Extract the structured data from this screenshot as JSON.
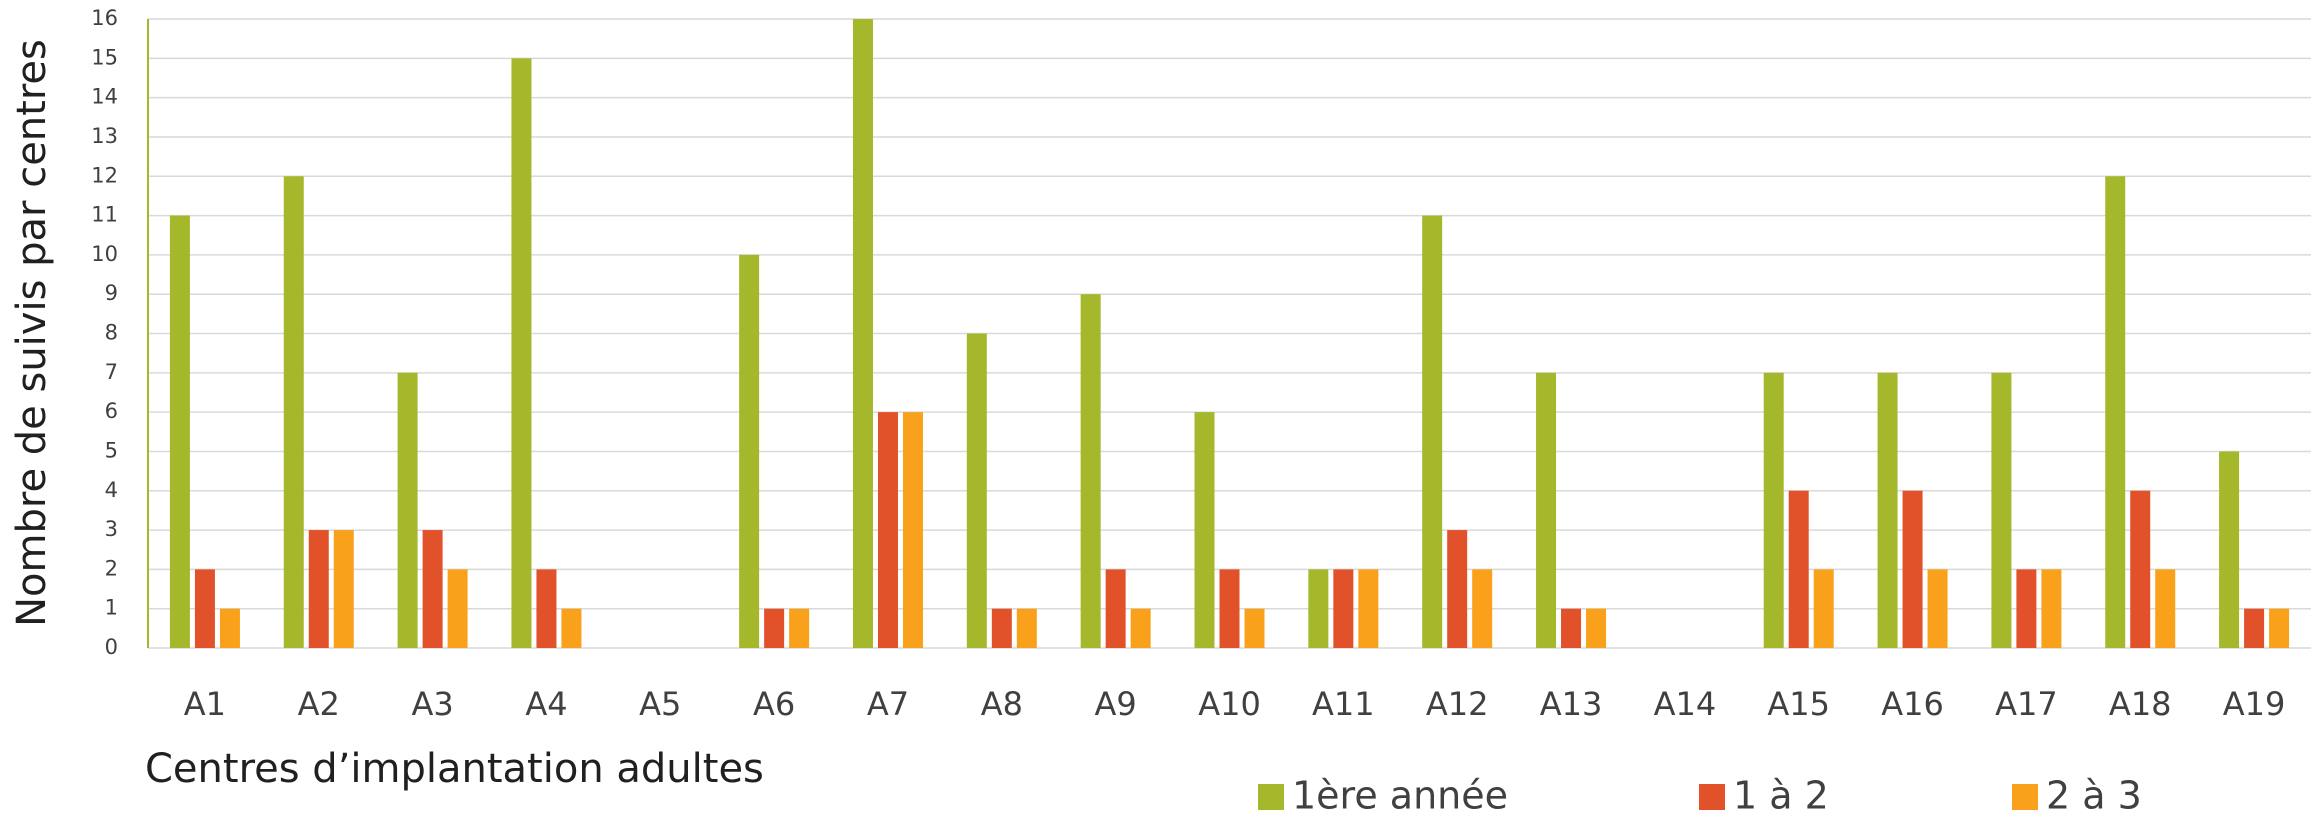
{
  "chart_data": {
    "type": "bar",
    "x_label": "Centres d’implantation adultes",
    "y_label": "Nombre de suivis par centres",
    "categories": [
      "A1",
      "A2",
      "A3",
      "A4",
      "A5",
      "A6",
      "A7",
      "A8",
      "A9",
      "A10",
      "A11",
      "A12",
      "A13",
      "A14",
      "A15",
      "A16",
      "A17",
      "A18",
      "A19"
    ],
    "series": [
      {
        "name": "1ère année",
        "color": "#a5b82c",
        "values": [
          11,
          12,
          7,
          15,
          0,
          10,
          16,
          8,
          9,
          6,
          2,
          11,
          7,
          0,
          7,
          7,
          7,
          12,
          5
        ]
      },
      {
        "name": "1 à 2",
        "color": "#e2522a",
        "values": [
          2,
          3,
          3,
          2,
          0,
          1,
          6,
          1,
          2,
          2,
          2,
          3,
          1,
          0,
          4,
          4,
          2,
          4,
          1
        ]
      },
      {
        "name": "2 à 3",
        "color": "#f9a11b",
        "values": [
          1,
          3,
          2,
          1,
          0,
          1,
          6,
          1,
          1,
          1,
          2,
          2,
          1,
          0,
          2,
          2,
          2,
          2,
          1
        ]
      }
    ],
    "ylim": [
      0,
      16
    ],
    "yticks": [
      0,
      1,
      2,
      3,
      4,
      5,
      6,
      7,
      8,
      9,
      10,
      11,
      12,
      13,
      14,
      15,
      16
    ],
    "grid": true,
    "legend": "bottom"
  }
}
